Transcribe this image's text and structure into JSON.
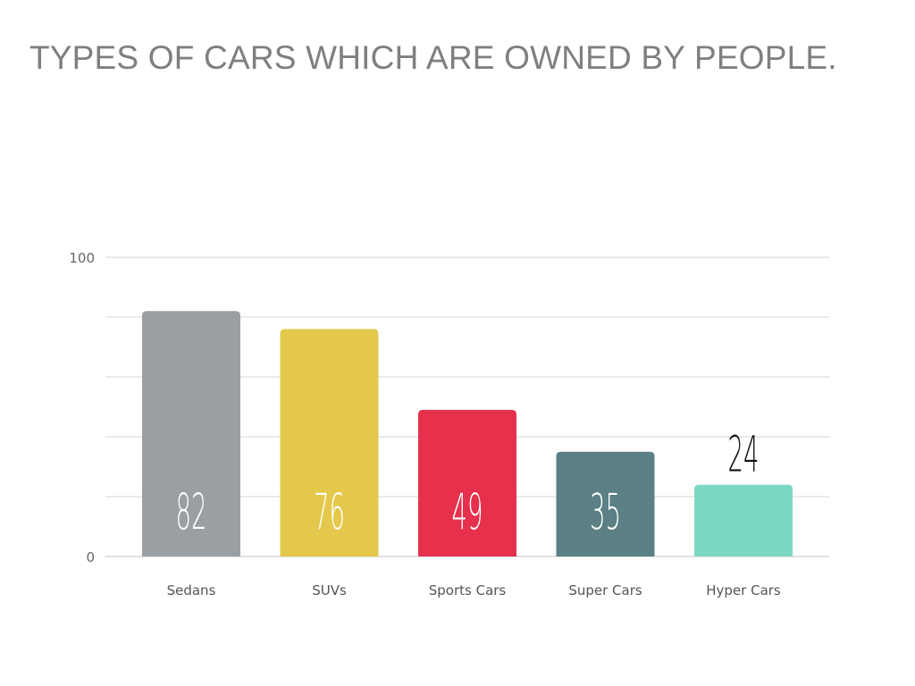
{
  "chart_data": {
    "type": "bar",
    "title": "TYPES OF CARS WHICH ARE OWNED BY PEOPLE.",
    "categories": [
      "Sedans",
      "SUVs",
      "Sports Cars",
      "Super Cars",
      "Hyper Cars"
    ],
    "values": [
      82,
      76,
      49,
      35,
      24
    ],
    "colors": [
      "#9a9fa3",
      "#e3c84c",
      "#e6304c",
      "#5b8086",
      "#7bd9c2"
    ],
    "ylim": [
      0,
      100
    ],
    "yticks_labeled": [
      "0",
      "100"
    ],
    "grid_step": 20,
    "grid": true,
    "xlabel": "",
    "ylabel": ""
  }
}
